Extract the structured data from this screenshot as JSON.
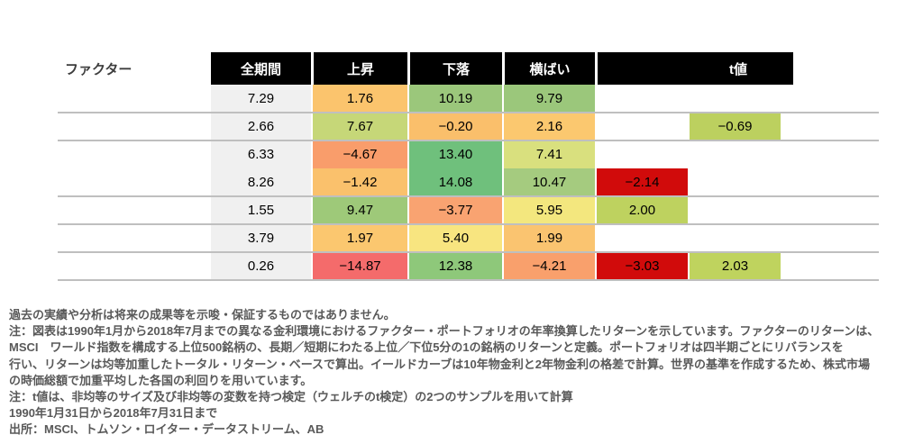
{
  "palette": {
    "header_bg": "#000000",
    "header_text": "#ffffff",
    "separator_line": "#bfbfbf",
    "all_period_col_bg": "#f0f0f0",
    "cell_text": "#000000",
    "note_text": "#595959",
    "significant_negative_red": "#d10b0b"
  },
  "table": {
    "factor_col_header": "ファクター",
    "col_headers": [
      "全期間",
      "上昇",
      "下落",
      "横ばい",
      "t値"
    ],
    "rows": [
      {
        "factor": "",
        "all": "7.29",
        "up": {
          "v": "1.76",
          "bg": "#fbc46d"
        },
        "down": {
          "v": "10.19",
          "bg": "#9bc77b"
        },
        "flat": {
          "v": "9.79",
          "bg": "#9bc77b"
        },
        "t1": null,
        "t2": null,
        "t3": null
      },
      {
        "factor": "",
        "all": "2.66",
        "up": {
          "v": "7.67",
          "bg": "#c6d778"
        },
        "down": {
          "v": "−0.20",
          "bg": "#fabf6b"
        },
        "flat": {
          "v": "2.16",
          "bg": "#fbc86f"
        },
        "t1": null,
        "t2": {
          "v": "−0.69",
          "bg": "#bcd05f"
        },
        "t3": null
      },
      {
        "factor": "",
        "all": "6.33",
        "up": {
          "v": "−4.67",
          "bg": "#f99d6b"
        },
        "down": {
          "v": "13.40",
          "bg": "#6fc07c"
        },
        "flat": {
          "v": "7.41",
          "bg": "#d9e07e"
        },
        "t1": null,
        "t2": null,
        "t3": null
      },
      {
        "factor": "",
        "all": "8.26",
        "up": {
          "v": "−1.42",
          "bg": "#fac16c"
        },
        "down": {
          "v": "14.08",
          "bg": "#6fc07c"
        },
        "flat": {
          "v": "10.47",
          "bg": "#a5cb7f"
        },
        "t1": {
          "v": "−2.14",
          "bg": "#d10b0b"
        },
        "t2": null,
        "t3": null
      },
      {
        "factor": "",
        "all": "1.55",
        "up": {
          "v": "9.47",
          "bg": "#9ec979"
        },
        "down": {
          "v": "−3.77",
          "bg": "#f9a371"
        },
        "flat": {
          "v": "5.95",
          "bg": "#f3e77e"
        },
        "t1": {
          "v": "2.00",
          "bg": "#bed25f"
        },
        "t2": null,
        "t3": null
      },
      {
        "factor": "",
        "all": "3.79",
        "up": {
          "v": "1.97",
          "bg": "#fbc76f"
        },
        "down": {
          "v": "5.40",
          "bg": "#f8e580"
        },
        "flat": {
          "v": "1.99",
          "bg": "#fac470"
        },
        "t1": null,
        "t2": null,
        "t3": null
      },
      {
        "factor": "",
        "all": "0.26",
        "up": {
          "v": "−14.87",
          "bg": "#f46b6b"
        },
        "down": {
          "v": "12.38",
          "bg": "#8ec87a"
        },
        "flat": {
          "v": "−4.21",
          "bg": "#f9a06c"
        },
        "t1": {
          "v": "−3.03",
          "bg": "#d10b0b"
        },
        "t2": {
          "v": "2.03",
          "bg": "#bfd35e"
        },
        "t3": null
      }
    ]
  },
  "notes": {
    "lines": [
      "過去の実績や分析は将来の成果等を示唆・保証するものではありません。",
      "注：図表は1990年1月から2018年7月までの異なる金利環境におけるファクター・ポートフォリオの年率換算したリターンを示しています。ファクターのリターンは、",
      "MSCI　ワールド指数を構成する上位500銘柄の、長期／短期にわたる上位／下位5分の1の銘柄のリターンと定義。ポートフォリオは四半期ごとにリバランスを",
      "行い、リターンは均等加重したトータル・リターン・ベースで算出。イールドカーブは10年物金利と2年物金利の格差で計算。世界の基準を作成するため、株式市場",
      "の時価総額で加重平均した各国の利回りを用いています。",
      "注：t値は、非均等のサイズ及び非均等の変数を持つ検定（ウェルチのt検定）の2つのサンプルを用いて計算",
      "1990年1月31日から2018年7月31日まで",
      "出所：MSCI、トムソン・ロイター・データストリーム、AB"
    ]
  },
  "chart_data": {
    "type": "heatmap",
    "title": "",
    "row_label_header": "ファクター",
    "row_labels": [
      "",
      "",
      "",
      "",
      "",
      "",
      ""
    ],
    "columns": [
      "全期間",
      "上昇",
      "下落",
      "横ばい",
      "t値(1)",
      "t値(2)",
      "t値(3)"
    ],
    "rows": [
      {
        "全期間": 7.29,
        "上昇": 1.76,
        "下落": 10.19,
        "横ばい": 9.79,
        "t値": [
          null,
          null,
          null
        ]
      },
      {
        "全期間": 2.66,
        "上昇": 7.67,
        "下落": -0.2,
        "横ばい": 2.16,
        "t値": [
          null,
          -0.69,
          null
        ]
      },
      {
        "全期間": 6.33,
        "上昇": -4.67,
        "下落": 13.4,
        "横ばい": 7.41,
        "t値": [
          null,
          null,
          null
        ]
      },
      {
        "全期間": 8.26,
        "上昇": -1.42,
        "下落": 14.08,
        "横ばい": 10.47,
        "t値": [
          -2.14,
          null,
          null
        ]
      },
      {
        "全期間": 1.55,
        "上昇": 9.47,
        "下落": -3.77,
        "横ばい": 5.95,
        "t値": [
          2.0,
          null,
          null
        ]
      },
      {
        "全期間": 3.79,
        "上昇": 1.97,
        "下落": 5.4,
        "横ばい": 1.99,
        "t値": [
          null,
          null,
          null
        ]
      },
      {
        "全期間": 0.26,
        "上昇": -14.87,
        "下落": 12.38,
        "横ばい": -4.21,
        "t値": [
          -3.03,
          2.03,
          null
        ]
      }
    ],
    "color_scale": "red (negative) → yellow → green (positive)",
    "legend_position": "none",
    "grid": "horizontal gray row separators; no line between rows 3 and 4"
  }
}
